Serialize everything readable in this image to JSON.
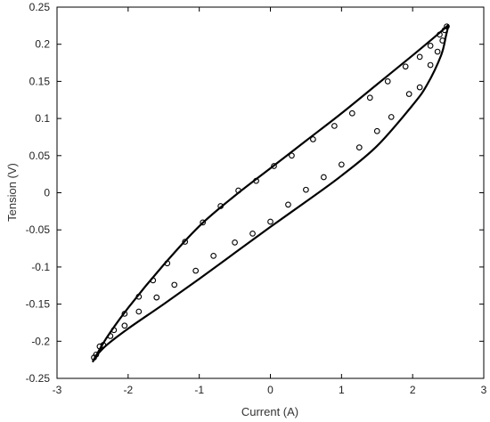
{
  "chart_data": {
    "type": "scatter",
    "xlabel": "Current (A)",
    "ylabel": "Tension (V)",
    "xlim": [
      -3,
      3
    ],
    "ylim": [
      -0.25,
      0.25
    ],
    "xticks": [
      -3,
      -2,
      -1,
      0,
      1,
      2,
      3
    ],
    "yticks": [
      0.25,
      0.2,
      0.15,
      0.1,
      0.05,
      0,
      -0.05,
      -0.1,
      -0.15,
      -0.2,
      -0.25
    ],
    "xtick_labels": [
      "-3",
      "-2",
      "-1",
      "0",
      "1",
      "2",
      "3"
    ],
    "ytick_labels": [
      "0.25",
      "0.2",
      "0.15",
      "0.1",
      "0.05",
      "0",
      "-0.05",
      "-0.1",
      "-0.15",
      "-0.2",
      "-0.25"
    ],
    "grid": false,
    "series": [
      {
        "style": "line",
        "x": [
          -2.5,
          -2.3,
          -2.0,
          -1.5,
          -1.0,
          -0.5,
          0.0,
          0.5,
          1.0,
          1.5,
          2.0,
          2.3,
          2.47,
          2.5,
          2.47,
          2.4,
          2.2,
          2.0,
          1.5,
          1.0,
          0.5,
          0.0,
          -0.5,
          -1.0,
          -1.5,
          -2.0,
          -2.3,
          -2.45,
          -2.5
        ],
        "y": [
          -0.228,
          -0.195,
          -0.155,
          -0.097,
          -0.045,
          -0.004,
          0.033,
          0.07,
          0.107,
          0.146,
          0.185,
          0.209,
          0.223,
          0.225,
          0.212,
          0.185,
          0.145,
          0.118,
          0.063,
          0.023,
          -0.012,
          -0.046,
          -0.081,
          -0.116,
          -0.15,
          -0.183,
          -0.205,
          -0.22,
          -0.228
        ]
      },
      {
        "style": "markers",
        "x": [
          -2.45,
          -2.35,
          -2.2,
          -2.05,
          -1.85,
          -1.65,
          -1.45,
          -1.2,
          -0.95,
          -0.7,
          -0.45,
          -0.2,
          0.05,
          0.3,
          0.6,
          0.9,
          1.15,
          1.4,
          1.65,
          1.9,
          2.1,
          2.25,
          2.38,
          2.45,
          2.48,
          2.42,
          2.35,
          2.25,
          2.1,
          1.95,
          1.7,
          1.5,
          1.25,
          1.0,
          0.75,
          0.5,
          0.25,
          0.0,
          -0.25,
          -0.5,
          -0.8,
          -1.05,
          -1.35,
          -1.6,
          -1.85,
          -2.05,
          -2.25,
          -2.4,
          -2.48
        ],
        "y": [
          -0.218,
          -0.205,
          -0.185,
          -0.163,
          -0.14,
          -0.118,
          -0.095,
          -0.066,
          -0.04,
          -0.018,
          0.003,
          0.016,
          0.036,
          0.05,
          0.072,
          0.09,
          0.107,
          0.128,
          0.15,
          0.17,
          0.183,
          0.198,
          0.213,
          0.219,
          0.224,
          0.205,
          0.19,
          0.172,
          0.142,
          0.133,
          0.102,
          0.083,
          0.061,
          0.038,
          0.021,
          0.004,
          -0.016,
          -0.039,
          -0.055,
          -0.067,
          -0.085,
          -0.105,
          -0.124,
          -0.141,
          -0.16,
          -0.179,
          -0.193,
          -0.207,
          -0.222
        ]
      }
    ]
  }
}
